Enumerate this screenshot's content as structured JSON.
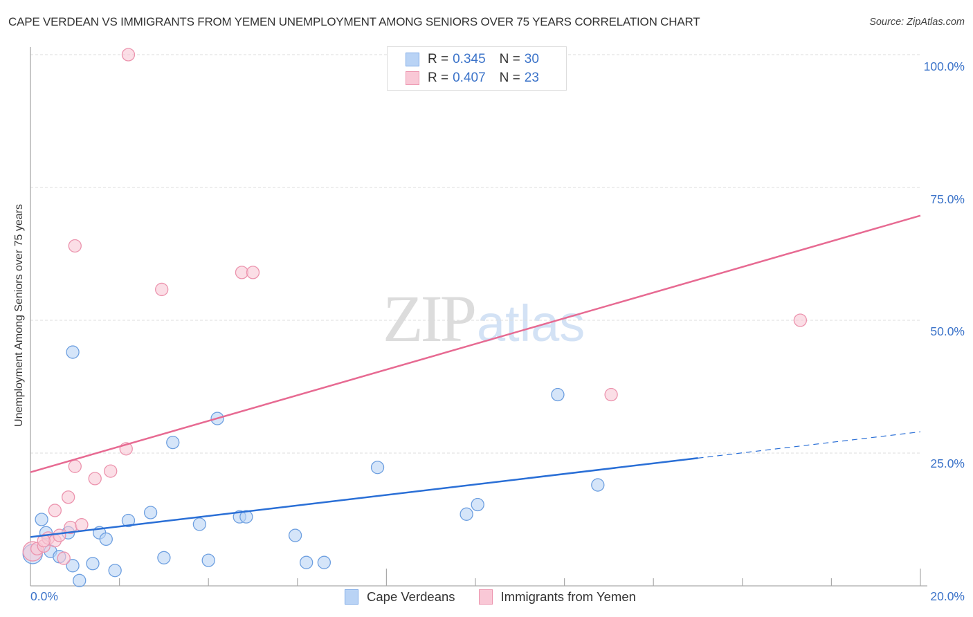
{
  "header": {
    "title": "CAPE VERDEAN VS IMMIGRANTS FROM YEMEN UNEMPLOYMENT AMONG SENIORS OVER 75 YEARS CORRELATION CHART",
    "source": "Source: ZipAtlas.com"
  },
  "legend": {
    "rows": [
      {
        "swatch": "blue",
        "r_label": "R =",
        "r_value": "0.345",
        "n_label": "N =",
        "n_value": "30"
      },
      {
        "swatch": "pink",
        "r_label": "R =",
        "r_value": "0.407",
        "n_label": "N =",
        "n_value": "23"
      }
    ]
  },
  "axes": {
    "y_label": "Unemployment Among Seniors over 75 years",
    "y_ticks": [
      "100.0%",
      "75.0%",
      "50.0%",
      "25.0%"
    ],
    "x_ticks": [
      "0.0%",
      "20.0%"
    ]
  },
  "bottom_legend": {
    "items": [
      {
        "label": "Cape Verdeans",
        "swatch": "blue"
      },
      {
        "label": "Immigrants from Yemen",
        "swatch": "pink"
      }
    ]
  },
  "watermark": {
    "zip": "ZIP",
    "atlas": "atlas"
  },
  "colors": {
    "blue_fill": "#b9d3f5",
    "blue_stroke": "#6d9fe0",
    "blue_line": "#2a6fd6",
    "pink_fill": "#f9c8d6",
    "pink_stroke": "#ec94ae",
    "pink_line": "#e76a92",
    "tick_text": "#3b73c9"
  },
  "chart_data": {
    "type": "scatter",
    "title": "CAPE VERDEAN VS IMMIGRANTS FROM YEMEN UNEMPLOYMENT AMONG SENIORS OVER 75 YEARS CORRELATION CHART",
    "xlabel": "",
    "ylabel": "Unemployment Among Seniors over 75 years",
    "xlim": [
      0,
      20
    ],
    "ylim": [
      0,
      100
    ],
    "x_tick_labels": [
      "0.0%",
      "20.0%"
    ],
    "y_tick_labels": [
      "25.0%",
      "50.0%",
      "75.0%",
      "100.0%"
    ],
    "grid": {
      "horizontal_dashed": [
        25,
        50,
        75,
        100
      ]
    },
    "legend_position": "top-center and bottom",
    "series": [
      {
        "name": "Cape Verdeans",
        "color": "#b9d3f5",
        "R": 0.345,
        "N": 30,
        "points": [
          [
            0.05,
            6.0
          ],
          [
            0.25,
            12.5
          ],
          [
            0.35,
            10.0
          ],
          [
            0.45,
            6.5
          ],
          [
            0.65,
            5.5
          ],
          [
            0.85,
            10.0
          ],
          [
            0.95,
            3.8
          ],
          [
            1.1,
            1.0
          ],
          [
            1.4,
            4.2
          ],
          [
            1.55,
            10.0
          ],
          [
            1.7,
            8.8
          ],
          [
            1.9,
            2.9
          ],
          [
            2.2,
            12.3
          ],
          [
            2.7,
            13.8
          ],
          [
            3.0,
            5.3
          ],
          [
            3.8,
            11.6
          ],
          [
            4.0,
            4.8
          ],
          [
            3.2,
            27.0
          ],
          [
            0.95,
            44.0
          ],
          [
            4.2,
            31.5
          ],
          [
            4.7,
            13.0
          ],
          [
            4.85,
            13.0
          ],
          [
            5.95,
            9.5
          ],
          [
            6.2,
            4.4
          ],
          [
            6.6,
            4.4
          ],
          [
            7.8,
            22.3
          ],
          [
            9.8,
            13.5
          ],
          [
            10.05,
            15.3
          ],
          [
            11.85,
            36.0
          ],
          [
            12.75,
            19.0
          ]
        ],
        "trend_line": {
          "x0": 0,
          "y0": 9.2,
          "x1": 20,
          "y1": 29.0,
          "solid_until_x": 15.0
        }
      },
      {
        "name": "Immigrants from Yemen",
        "color": "#f9c8d6",
        "R": 0.407,
        "N": 23,
        "points": [
          [
            0.05,
            6.5
          ],
          [
            0.15,
            7.0
          ],
          [
            0.3,
            7.5
          ],
          [
            0.4,
            9.0
          ],
          [
            0.55,
            8.5
          ],
          [
            0.55,
            14.2
          ],
          [
            0.65,
            9.5
          ],
          [
            0.75,
            5.2
          ],
          [
            0.85,
            16.7
          ],
          [
            0.9,
            11.0
          ],
          [
            1.15,
            11.5
          ],
          [
            1.0,
            22.5
          ],
          [
            1.45,
            20.2
          ],
          [
            1.8,
            21.6
          ],
          [
            2.15,
            25.8
          ],
          [
            1.0,
            64.0
          ],
          [
            2.2,
            100.0
          ],
          [
            2.95,
            55.8
          ],
          [
            4.75,
            59.0
          ],
          [
            5.0,
            59.0
          ],
          [
            13.05,
            36.0
          ],
          [
            17.3,
            50.0
          ],
          [
            0.3,
            8.5
          ]
        ],
        "trend_line": {
          "x0": 0,
          "y0": 21.4,
          "x1": 20,
          "y1": 69.7
        }
      }
    ]
  }
}
